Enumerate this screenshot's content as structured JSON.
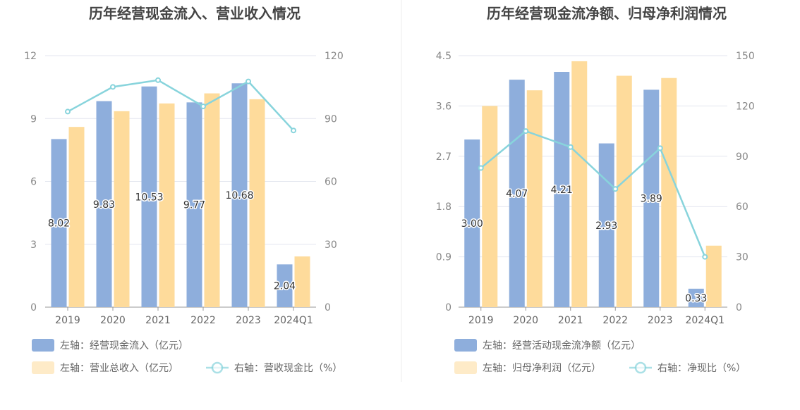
{
  "chart_data": [
    {
      "type": "bar",
      "title": "历年经营现金流入、营业收入情况",
      "categories": [
        "2019",
        "2020",
        "2021",
        "2022",
        "2023",
        "2024Q1"
      ],
      "left_axis": {
        "ylim": [
          0,
          12
        ],
        "ticks": [
          "0",
          "3",
          "6",
          "9",
          "12"
        ]
      },
      "right_axis": {
        "ylim": [
          0,
          120
        ],
        "ticks": [
          "0",
          "30",
          "60",
          "90",
          "120"
        ]
      },
      "series": [
        {
          "name": "左轴：经营现金流入（亿元）",
          "type": "bar",
          "axis": "left",
          "color": "#8eaedc",
          "values": [
            8.02,
            9.83,
            10.53,
            9.77,
            10.68,
            2.04
          ],
          "labels": [
            "8.02",
            "9.83",
            "10.53",
            "9.77",
            "10.68",
            "2.04"
          ]
        },
        {
          "name": "左轴：营业总收入（亿元）",
          "type": "bar",
          "axis": "left",
          "color": "#fedb9b",
          "values": [
            8.6,
            9.35,
            9.72,
            10.2,
            9.92,
            2.42
          ]
        },
        {
          "name": "右轴：营收现金比（%）",
          "type": "line",
          "axis": "right",
          "color": "#88d4dc",
          "values": [
            93.3,
            105.1,
            108.3,
            95.8,
            107.7,
            84.3
          ]
        }
      ],
      "grid": true,
      "legend_position": "bottom-left"
    },
    {
      "type": "bar",
      "title": "历年经营现金流净额、归母净利润情况",
      "categories": [
        "2019",
        "2020",
        "2021",
        "2022",
        "2023",
        "2024Q1"
      ],
      "left_axis": {
        "ylim": [
          0,
          4.5
        ],
        "ticks": [
          "0",
          "0.9",
          "1.8",
          "2.7",
          "3.6",
          "4.5"
        ]
      },
      "right_axis": {
        "ylim": [
          0,
          150
        ],
        "ticks": [
          "0",
          "30",
          "60",
          "90",
          "120",
          "150"
        ]
      },
      "series": [
        {
          "name": "左轴：经营活动现金流净额（亿元）",
          "type": "bar",
          "axis": "left",
          "color": "#8eaedc",
          "values": [
            3.0,
            4.07,
            4.21,
            2.93,
            3.89,
            0.33
          ],
          "labels": [
            "3.00",
            "4.07",
            "4.21",
            "2.93",
            "3.89",
            "0.33"
          ]
        },
        {
          "name": "左轴：归母净利润（亿元）",
          "type": "bar",
          "axis": "left",
          "color": "#fedb9b",
          "values": [
            3.6,
            3.88,
            4.4,
            4.14,
            4.1,
            1.1
          ]
        },
        {
          "name": "右轴：净现比（%）",
          "type": "line",
          "axis": "right",
          "color": "#88d4dc",
          "values": [
            83,
            105,
            95.5,
            70.5,
            94.8,
            30
          ]
        }
      ],
      "grid": true,
      "legend_position": "bottom-left"
    }
  ]
}
